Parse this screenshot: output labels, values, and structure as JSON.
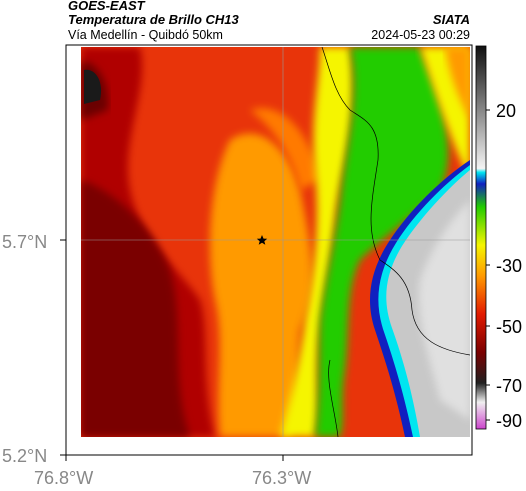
{
  "header": {
    "satellite": "GOES-EAST",
    "product": "Temperatura de Brillo CH13",
    "route": "Vía Medellín - Quibdó 50km",
    "org": "SIATA",
    "timestamp": "2024-05-23 00:29"
  },
  "axes": {
    "lat_ticks": [
      "5.7°N",
      "5.2°N"
    ],
    "lon_ticks": [
      "76.8°W",
      "76.3°W"
    ]
  },
  "colorbar": {
    "ticks": [
      "20",
      "-30",
      "-50",
      "-70",
      "-90"
    ],
    "min": -95,
    "max": 40
  },
  "marker": {
    "symbol": "star",
    "lat": 5.7,
    "lon": -76.32
  },
  "colors": {
    "dark_red": "#7a0000",
    "red": "#e21a00",
    "orange": "#ff9a00",
    "yellow": "#f5f500",
    "green": "#22cc00",
    "cyan": "#00e6f0",
    "blue": "#1020c0",
    "navy": "#000050",
    "gray": "#c8c8c8"
  }
}
